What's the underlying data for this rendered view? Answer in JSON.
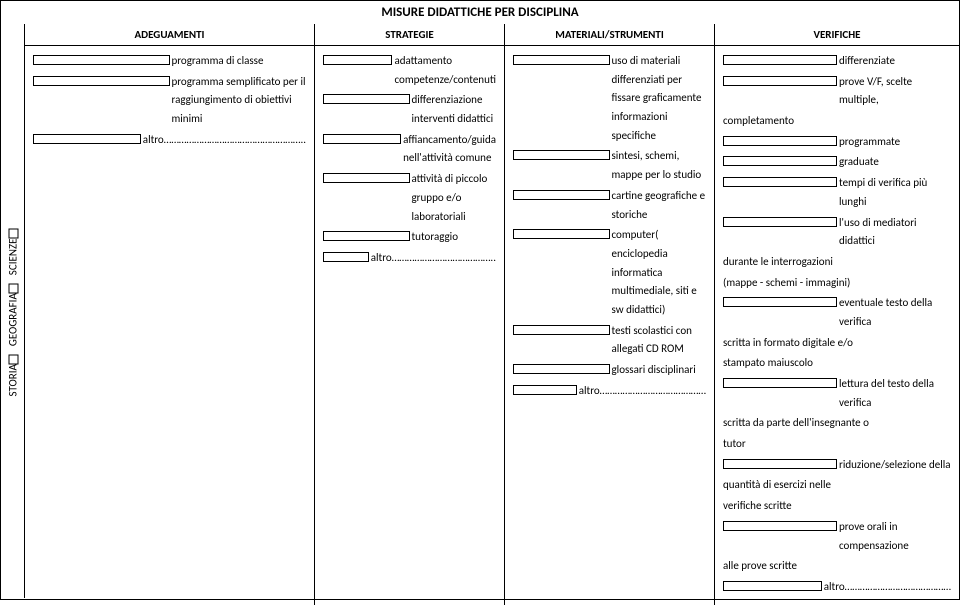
{
  "title": "MISURE DIDATTICHE PER DISCIPLINA",
  "sidebar": {
    "subjects": [
      {
        "label": "STORIA"
      },
      {
        "label": "GEOGRAFIA"
      },
      {
        "label": "SCIENZE"
      }
    ]
  },
  "headers": {
    "col1": "ADEGUAMENTI",
    "col2": "STRATEGIE",
    "col3": "MATERIALI/STRUMENTI",
    "col4": "VERIFICHE"
  },
  "adeguamenti": [
    "programma di classe",
    "programma semplificato per il raggiungimento di obiettivi minimi",
    "altro……………………………………………….."
  ],
  "strategie": [
    "adattamento competenze/contenuti",
    "differenziazione interventi didattici",
    "affiancamento/guida nell'attività comune",
    "attività di piccolo gruppo  e/o laboratoriali",
    "tutoraggio",
    "altro………………………………….."
  ],
  "materiali": [
    "uso di materiali differenziati per fissare graficamente informazioni specifiche",
    "sintesi, schemi, mappe per lo studio",
    "cartine geografiche e storiche",
    "computer( enciclopedia informatica multimediale, siti e sw didattici)",
    "testi scolastici con allegati CD ROM",
    "glossari disciplinari",
    "altro……………………………………"
  ],
  "verifiche": {
    "items": [
      "differenziate",
      "prove V/F, scelte multiple,",
      "programmate",
      "graduate",
      "tempi di verifica più lunghi",
      "l'uso di mediatori didattici",
      "eventuale testo della verifica",
      "lettura del testo della verifica",
      "riduzione/selezione della",
      "prove orali in compensazione",
      "altro……………………………………"
    ],
    "cont_after_1": "completamento",
    "cont_after_5": "durante le interrogazioni",
    "cont_after_5b": "(mappe - schemi - immagini)",
    "cont_after_6": "scritta in formato digitale e/o",
    "cont_after_6b": "stampato maiuscolo",
    "cont_after_7": "scritta da parte dell'insegnante o",
    "cont_after_7b": "tutor",
    "cont_after_8": "quantità di esercizi nelle",
    "cont_after_8b": "verifiche scritte",
    "cont_after_9": "alle prove scritte"
  }
}
